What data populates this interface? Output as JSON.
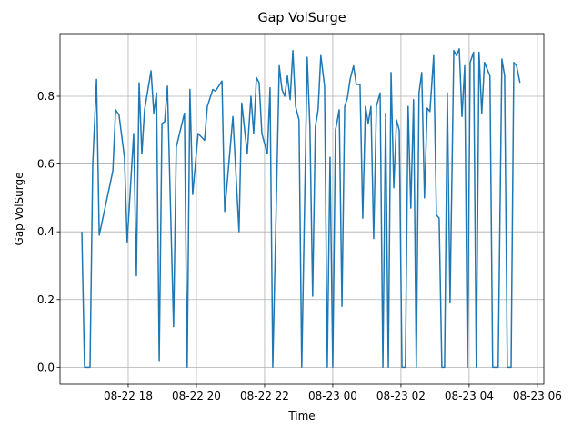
{
  "chart_data": {
    "type": "line",
    "title": "Gap VolSurge",
    "xlabel": "Time",
    "ylabel": "Gap VolSurge",
    "x": [
      16.64,
      16.72,
      16.88,
      16.96,
      17.07,
      17.15,
      17.55,
      17.63,
      17.73,
      17.89,
      17.97,
      18.16,
      18.24,
      18.32,
      18.4,
      18.48,
      18.67,
      18.75,
      18.83,
      18.91,
      18.99,
      19.07,
      19.15,
      19.33,
      19.41,
      19.65,
      19.73,
      19.81,
      19.89,
      20.05,
      20.24,
      20.32,
      20.48,
      20.56,
      20.75,
      20.83,
      21.07,
      21.25,
      21.33,
      21.49,
      21.6,
      21.68,
      21.76,
      21.84,
      21.92,
      22.08,
      22.16,
      22.24,
      22.43,
      22.51,
      22.59,
      22.67,
      22.75,
      22.83,
      22.91,
      23.01,
      23.09,
      23.25,
      23.33,
      23.41,
      23.49,
      23.57,
      23.65,
      23.76,
      23.84,
      23.92,
      24.0,
      24.08,
      24.19,
      24.27,
      24.35,
      24.43,
      24.51,
      24.61,
      24.69,
      24.8,
      24.88,
      24.96,
      25.04,
      25.12,
      25.2,
      25.28,
      25.39,
      25.47,
      25.55,
      25.63,
      25.71,
      25.79,
      25.87,
      25.95,
      26.03,
      26.13,
      26.21,
      26.29,
      26.37,
      26.45,
      26.53,
      26.61,
      26.69,
      26.77,
      26.85,
      26.96,
      27.04,
      27.12,
      27.2,
      27.28,
      27.36,
      27.44,
      27.55,
      27.63,
      27.71,
      27.79,
      27.87,
      27.95,
      28.03,
      28.13,
      28.21,
      28.29,
      28.37,
      28.45,
      28.53,
      28.61,
      28.69,
      28.85,
      28.96,
      29.04,
      29.12,
      29.23,
      29.31,
      29.39,
      29.49
    ],
    "series": [
      {
        "name": "Gap VolSurge",
        "color": "#1f77b4",
        "values": [
          0.4,
          0.0,
          0.0,
          0.6,
          0.85,
          0.39,
          0.58,
          0.76,
          0.745,
          0.62,
          0.37,
          0.69,
          0.27,
          0.84,
          0.63,
          0.76,
          0.875,
          0.75,
          0.81,
          0.02,
          0.72,
          0.725,
          0.83,
          0.12,
          0.65,
          0.75,
          0.0,
          0.82,
          0.51,
          0.69,
          0.67,
          0.77,
          0.82,
          0.815,
          0.845,
          0.46,
          0.74,
          0.4,
          0.78,
          0.63,
          0.8,
          0.69,
          0.855,
          0.84,
          0.69,
          0.63,
          0.825,
          0.0,
          0.89,
          0.82,
          0.8,
          0.86,
          0.79,
          0.935,
          0.77,
          0.73,
          0.0,
          0.915,
          0.71,
          0.21,
          0.71,
          0.76,
          0.92,
          0.83,
          0.0,
          0.62,
          0.0,
          0.7,
          0.76,
          0.18,
          0.77,
          0.795,
          0.85,
          0.89,
          0.835,
          0.835,
          0.44,
          0.77,
          0.72,
          0.77,
          0.38,
          0.77,
          0.81,
          0.0,
          0.75,
          0.0,
          0.87,
          0.53,
          0.73,
          0.7,
          0.0,
          0.0,
          0.77,
          0.47,
          0.79,
          0.0,
          0.81,
          0.87,
          0.5,
          0.765,
          0.755,
          0.92,
          0.45,
          0.44,
          0.0,
          0.0,
          0.81,
          0.19,
          0.935,
          0.92,
          0.94,
          0.74,
          0.89,
          0.0,
          0.9,
          0.93,
          0.0,
          0.93,
          0.75,
          0.9,
          0.88,
          0.86,
          0.0,
          0.0,
          0.91,
          0.86,
          0.0,
          0.0,
          0.9,
          0.89,
          0.84
        ]
      }
    ],
    "xlim": [
      16.0,
      30.19
    ],
    "ylim": [
      -0.05,
      0.985
    ],
    "xticks": [
      {
        "value": 18,
        "label": "08-22 18"
      },
      {
        "value": 20,
        "label": "08-22 20"
      },
      {
        "value": 22,
        "label": "08-22 22"
      },
      {
        "value": 24,
        "label": "08-23 00"
      },
      {
        "value": 26,
        "label": "08-23 02"
      },
      {
        "value": 28,
        "label": "08-23 04"
      },
      {
        "value": 30,
        "label": "08-23 06"
      }
    ],
    "yticks": [
      {
        "value": 0,
        "label": "0.0"
      },
      {
        "value": 0.2,
        "label": "0.2"
      },
      {
        "value": 0.4,
        "label": "0.4"
      },
      {
        "value": 0.6,
        "label": "0.6"
      },
      {
        "value": 0.8,
        "label": "0.8"
      }
    ],
    "grid": true
  }
}
